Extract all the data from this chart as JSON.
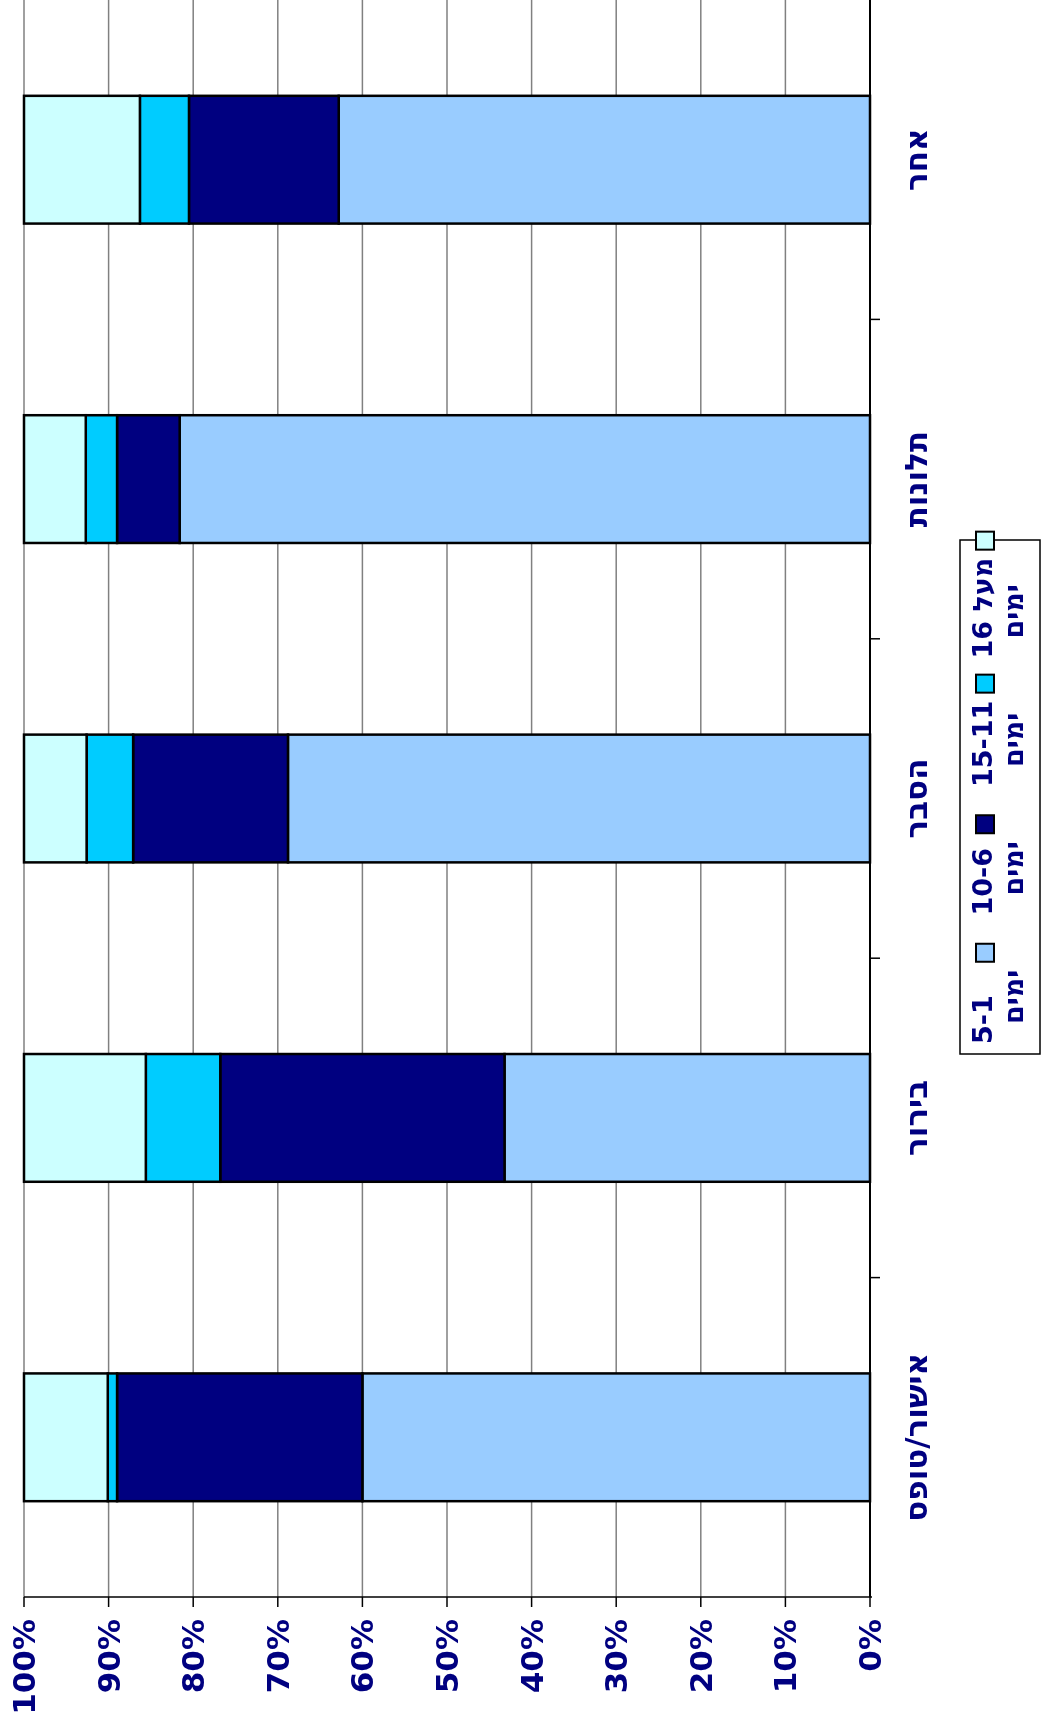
{
  "chart_data": {
    "type": "bar",
    "orientation": "horizontal",
    "stacked": true,
    "categories": [
      "אחר",
      "תלונות",
      "הסבר",
      "בירור",
      "אישור/טופס"
    ],
    "series": [
      {
        "name": "5-1 ימים",
        "color": "#99ccff",
        "values": [
          62.8,
          81.6,
          68.8,
          43.2,
          60.0
        ]
      },
      {
        "name": "10-6 ימים",
        "color": "#000080",
        "values": [
          17.7,
          7.4,
          18.3,
          33.6,
          29.0
        ]
      },
      {
        "name": "15-11 ימים",
        "color": "#00ccff",
        "values": [
          5.8,
          3.7,
          5.5,
          8.8,
          1.1
        ]
      },
      {
        "name": "מעל 16 ימים",
        "color": "#ccffff",
        "values": [
          13.7,
          7.3,
          7.4,
          14.4,
          9.9
        ]
      }
    ],
    "xlim": [
      100,
      0
    ],
    "xticks": [
      {
        "value": 100,
        "label": "100%"
      },
      {
        "value": 90,
        "label": "90%"
      },
      {
        "value": 80,
        "label": "80%"
      },
      {
        "value": 70,
        "label": "70%"
      },
      {
        "value": 60,
        "label": "60%"
      },
      {
        "value": 50,
        "label": "50%"
      },
      {
        "value": 40,
        "label": "40%"
      },
      {
        "value": 30,
        "label": "30%"
      },
      {
        "value": 20,
        "label": "20%"
      },
      {
        "value": 10,
        "label": "10%"
      },
      {
        "value": 0,
        "label": "0%"
      }
    ],
    "grid": "x",
    "legend": "right"
  }
}
